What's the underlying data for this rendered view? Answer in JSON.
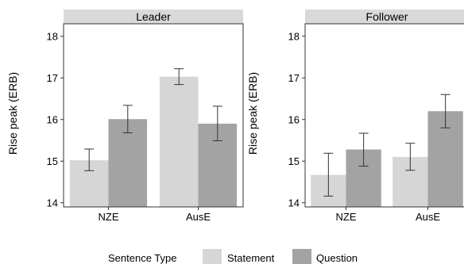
{
  "chart_data": {
    "type": "bar",
    "layout": "faceted",
    "ylabel": "Rise peak (ERB)",
    "ylim": [
      13.9,
      18.3
    ],
    "yticks": [
      14,
      15,
      16,
      17,
      18
    ],
    "grid": false,
    "legend": {
      "title": "Sentence Type",
      "position": "bottom",
      "entries": [
        {
          "name": "Statement",
          "color": "#d6d6d6"
        },
        {
          "name": "Question",
          "color": "#a3a3a3"
        }
      ]
    },
    "panels": [
      {
        "title": "Leader",
        "categories": [
          "NZE",
          "AusE"
        ],
        "series": [
          {
            "name": "Statement",
            "values": [
              15.02,
              17.03
            ],
            "error_low": [
              14.77,
              16.84
            ],
            "error_high": [
              15.29,
              17.22
            ]
          },
          {
            "name": "Question",
            "values": [
              16.01,
              15.9
            ],
            "error_low": [
              15.68,
              15.49
            ],
            "error_high": [
              16.34,
              16.32
            ]
          }
        ]
      },
      {
        "title": "Follower",
        "categories": [
          "NZE",
          "AusE"
        ],
        "series": [
          {
            "name": "Statement",
            "values": [
              14.67,
              15.1
            ],
            "error_low": [
              14.16,
              14.78
            ],
            "error_high": [
              15.19,
              15.43
            ]
          },
          {
            "name": "Question",
            "values": [
              15.28,
              16.2
            ],
            "error_low": [
              14.88,
              15.8
            ],
            "error_high": [
              15.67,
              16.6
            ]
          }
        ]
      }
    ]
  }
}
